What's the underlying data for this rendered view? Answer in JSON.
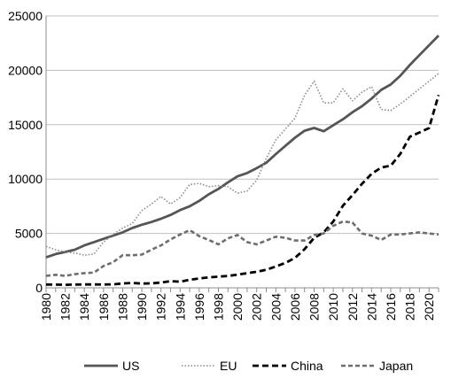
{
  "chart_data": {
    "type": "line",
    "title": "",
    "xlabel": "",
    "ylabel": "",
    "x": [
      1980,
      1981,
      1982,
      1983,
      1984,
      1985,
      1986,
      1987,
      1988,
      1989,
      1990,
      1991,
      1992,
      1993,
      1994,
      1995,
      1996,
      1997,
      1998,
      1999,
      2000,
      2001,
      2002,
      2003,
      2004,
      2005,
      2006,
      2007,
      2008,
      2009,
      2010,
      2011,
      2012,
      2013,
      2014,
      2015,
      2016,
      2017,
      2018,
      2019,
      2020,
      2021
    ],
    "xticks": [
      "1980",
      "1982",
      "1984",
      "1986",
      "1988",
      "1990",
      "1992",
      "1994",
      "1996",
      "1998",
      "2000",
      "2002",
      "2004",
      "2006",
      "2008",
      "2010",
      "2012",
      "2014",
      "2016",
      "2018",
      "2020"
    ],
    "yticks": [
      "0",
      "5000",
      "10000",
      "15000",
      "20000",
      "25000"
    ],
    "ylim": [
      0,
      25000
    ],
    "xlim": [
      1980,
      2021
    ],
    "grid": "horizontal",
    "legend_position": "bottom",
    "series": [
      {
        "name": "US",
        "style": "solid",
        "color": "#555555",
        "values": [
          2800,
          3100,
          3300,
          3500,
          3900,
          4200,
          4500,
          4800,
          5100,
          5500,
          5800,
          6050,
          6350,
          6700,
          7150,
          7500,
          8000,
          8600,
          9100,
          9700,
          10250,
          10550,
          11000,
          11500,
          12300,
          13050,
          13800,
          14450,
          14700,
          14400,
          14950,
          15500,
          16150,
          16700,
          17400,
          18200,
          18700,
          19500,
          20500,
          21400,
          22300,
          23200
        ]
      },
      {
        "name": "EU",
        "style": "dotted",
        "color": "#8c8c8c",
        "values": [
          3800,
          3500,
          3300,
          3200,
          3000,
          3100,
          4200,
          4900,
          5500,
          5900,
          7100,
          7700,
          8400,
          7700,
          8300,
          9500,
          9600,
          9300,
          9400,
          9300,
          8700,
          8900,
          9900,
          11900,
          13600,
          14600,
          15600,
          17700,
          19000,
          17000,
          17000,
          18300,
          17200,
          18000,
          18500,
          16400,
          16300,
          16900,
          17600,
          18300,
          19000,
          19700
        ]
      },
      {
        "name": "China",
        "style": "dashed",
        "color": "#000000",
        "values": [
          300,
          290,
          280,
          300,
          310,
          310,
          300,
          320,
          400,
          450,
          390,
          410,
          490,
          610,
          560,
          730,
          860,
          960,
          1030,
          1090,
          1210,
          1340,
          1470,
          1660,
          1960,
          2290,
          2750,
          3550,
          4590,
          5100,
          6090,
          7550,
          8530,
          9570,
          10480,
          11060,
          11230,
          12310,
          13890,
          14280,
          14690,
          17730
        ]
      },
      {
        "name": "Japan",
        "style": "dashed",
        "color": "#6e6e6e",
        "values": [
          1100,
          1200,
          1100,
          1250,
          1350,
          1400,
          2000,
          2350,
          3000,
          3000,
          3050,
          3500,
          3900,
          4450,
          4900,
          5300,
          4750,
          4400,
          4000,
          4550,
          4850,
          4200,
          4000,
          4350,
          4700,
          4600,
          4350,
          4350,
          4850,
          5000,
          5700,
          6100,
          6000,
          5000,
          4800,
          4400,
          4900,
          4900,
          5000,
          5100,
          5000,
          4900
        ]
      }
    ]
  }
}
